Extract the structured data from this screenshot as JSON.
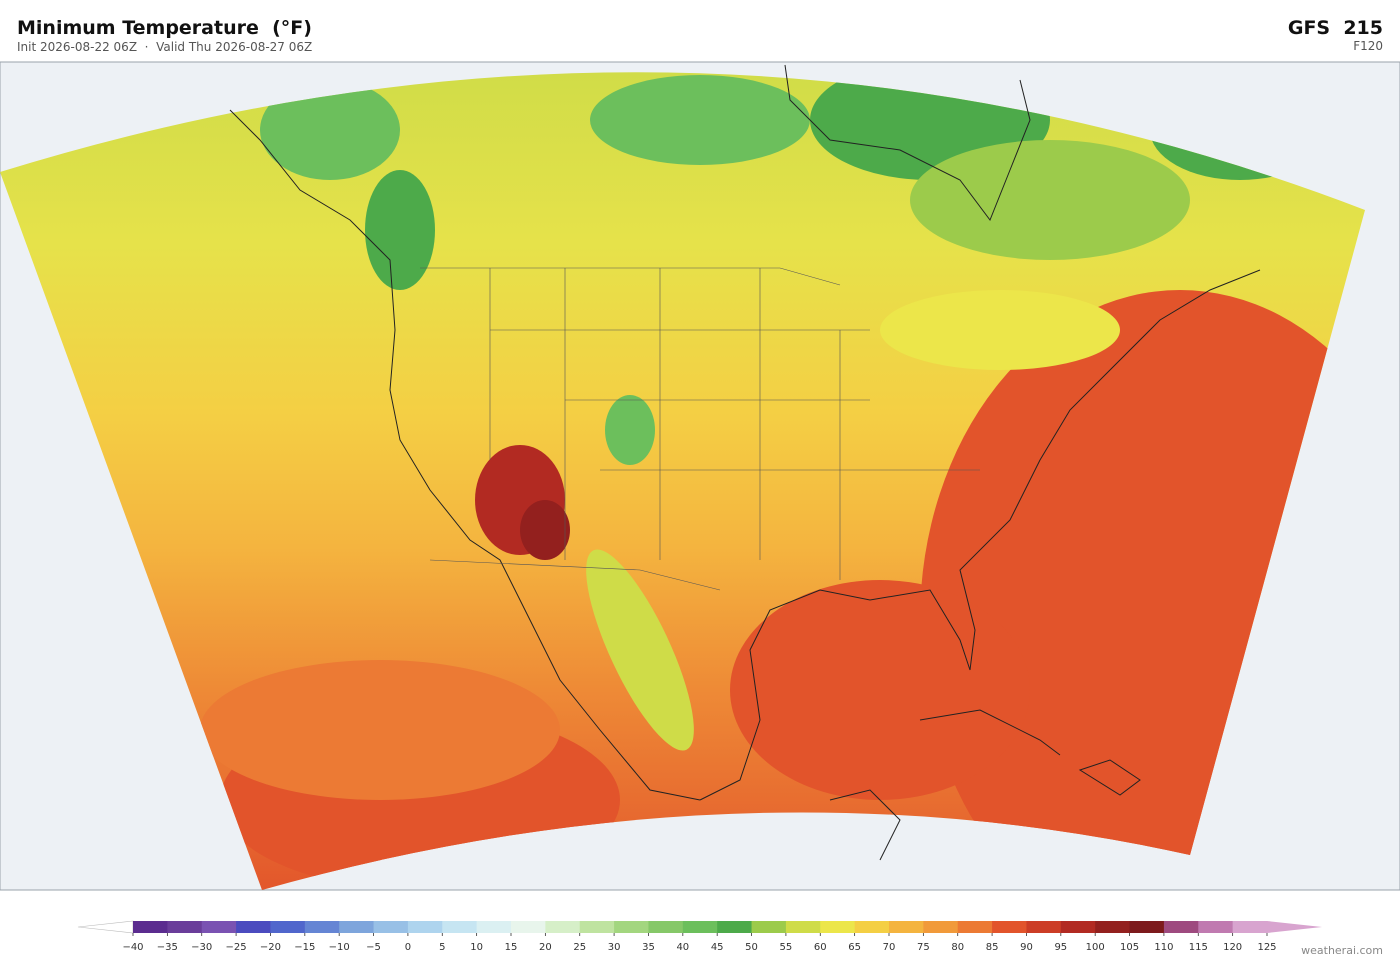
{
  "header": {
    "title": "Minimum Temperature  (°F)",
    "subtitle": "Init 2026-08-22 06Z  ·  Valid Thu 2026-08-27 06Z",
    "model": "GFS  215",
    "forecast_hour": "F120"
  },
  "colorbar": {
    "ticks": [
      {
        "value": -40,
        "label": "−40"
      },
      {
        "value": -35,
        "label": "−35"
      },
      {
        "value": -30,
        "label": "−30"
      },
      {
        "value": -25,
        "label": "−25"
      },
      {
        "value": -20,
        "label": "−20"
      },
      {
        "value": -15,
        "label": "−15"
      },
      {
        "value": -10,
        "label": "−10"
      },
      {
        "value": -5,
        "label": "−5"
      },
      0,
      5,
      10,
      15,
      20,
      25,
      30,
      35,
      40,
      45,
      50,
      55,
      60,
      65,
      70,
      75,
      80,
      85,
      90,
      95,
      100,
      105,
      110,
      115,
      120,
      125
    ],
    "colors": [
      "#5b2c8f",
      "#6a3d9a",
      "#7a52b2",
      "#4b4bbf",
      "#5066cc",
      "#6585d4",
      "#7ea5dc",
      "#98c0e6",
      "#aed4ee",
      "#c6e5f2",
      "#dbf0f2",
      "#e8f5ec",
      "#d6efc8",
      "#bfe3a0",
      "#a3d67f",
      "#86c868",
      "#6cbf5c",
      "#4daa4a",
      "#9ccb4b",
      "#cfdc48",
      "#ece64a",
      "#f4cf44",
      "#f4b43f",
      "#f19a3a",
      "#ec7a34",
      "#e2542b",
      "#cc3d26",
      "#b22a22",
      "#93201e",
      "#7d1a1c",
      "#9e4a7f",
      "#c07ab0",
      "#d8a4cf"
    ],
    "under_color": "#ffffff",
    "over_color": "#d8a4cf"
  },
  "watermark": "weatherai.com"
}
